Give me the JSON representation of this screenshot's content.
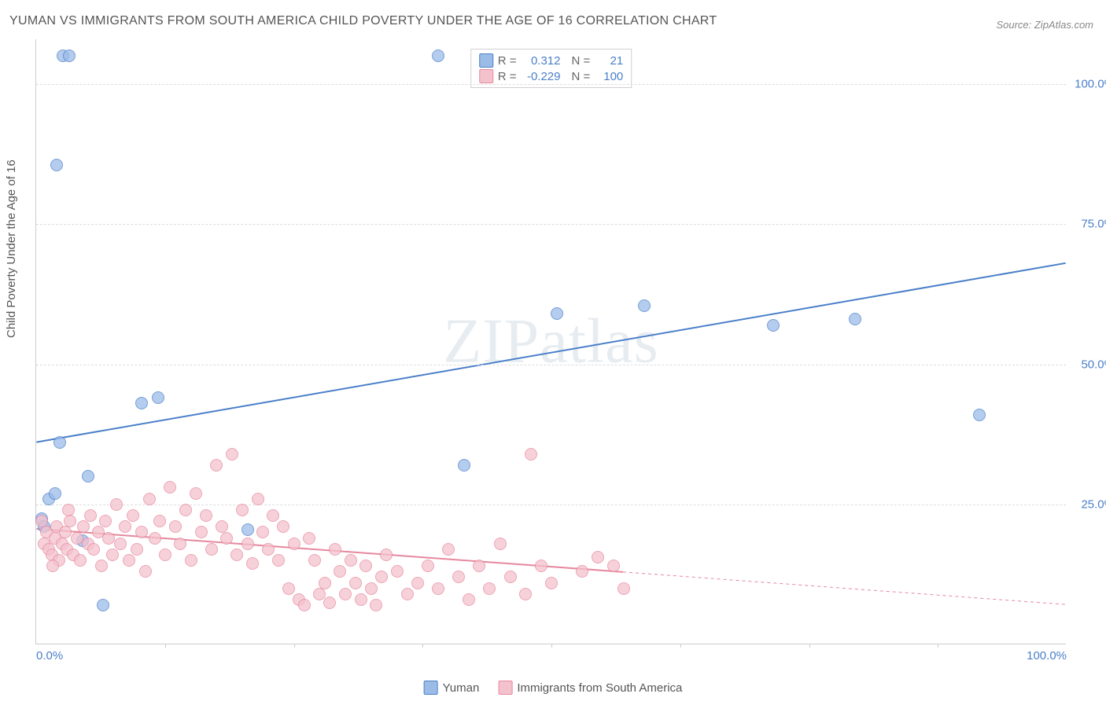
{
  "title": "YUMAN VS IMMIGRANTS FROM SOUTH AMERICA CHILD POVERTY UNDER THE AGE OF 16 CORRELATION CHART",
  "source": "Source: ZipAtlas.com",
  "ylabel": "Child Poverty Under the Age of 16",
  "watermark": "ZIPatlas",
  "chart": {
    "type": "scatter",
    "xlim": [
      0,
      100
    ],
    "ylim": [
      0,
      108
    ],
    "yticks": [
      25,
      50,
      75,
      100
    ],
    "ytick_labels": [
      "25.0%",
      "50.0%",
      "75.0%",
      "100.0%"
    ],
    "xticks": [
      0,
      100
    ],
    "xtick_labels": [
      "0.0%",
      "100.0%"
    ],
    "xtick_minor": [
      12.5,
      25,
      37.5,
      50,
      62.5,
      75,
      87.5
    ],
    "background_color": "#ffffff",
    "grid_color": "#dddddd",
    "axis_color": "#cccccc",
    "tick_label_color": "#4a7fc9",
    "marker_radius": 8,
    "marker_fill_opacity": 0.35,
    "marker_stroke_width": 1.2,
    "trend_line_width": 2
  },
  "series": [
    {
      "name": "Yuman",
      "color_fill": "#9cbce8",
      "color_stroke": "#4a7fc9",
      "R": "0.312",
      "N": "21",
      "trend": {
        "x1": 0,
        "y1": 36,
        "x2": 100,
        "y2": 68,
        "dashed_from": null
      },
      "points": [
        {
          "x": 0.5,
          "y": 22.5
        },
        {
          "x": 0.8,
          "y": 21
        },
        {
          "x": 1.2,
          "y": 26
        },
        {
          "x": 1.8,
          "y": 27
        },
        {
          "x": 2.3,
          "y": 36
        },
        {
          "x": 2.6,
          "y": 105
        },
        {
          "x": 3.2,
          "y": 105
        },
        {
          "x": 2.0,
          "y": 85.5
        },
        {
          "x": 4.5,
          "y": 18.5
        },
        {
          "x": 5.0,
          "y": 30
        },
        {
          "x": 6.5,
          "y": 7
        },
        {
          "x": 10.2,
          "y": 43
        },
        {
          "x": 11.8,
          "y": 44
        },
        {
          "x": 20.5,
          "y": 20.5
        },
        {
          "x": 39,
          "y": 105
        },
        {
          "x": 41.5,
          "y": 32
        },
        {
          "x": 50.5,
          "y": 59
        },
        {
          "x": 59,
          "y": 60.5
        },
        {
          "x": 71.5,
          "y": 57
        },
        {
          "x": 79.5,
          "y": 58
        },
        {
          "x": 91.5,
          "y": 41
        }
      ]
    },
    {
      "name": "Immigrants from South America",
      "color_fill": "#f4c2cd",
      "color_stroke": "#e6889e",
      "R": "-0.229",
      "N": "100",
      "trend": {
        "x1": 0,
        "y1": 20.5,
        "x2": 100,
        "y2": 7,
        "dashed_from": 57
      },
      "points": [
        {
          "x": 0.5,
          "y": 22
        },
        {
          "x": 0.8,
          "y": 18
        },
        {
          "x": 1.0,
          "y": 20
        },
        {
          "x": 1.2,
          "y": 17
        },
        {
          "x": 1.5,
          "y": 16
        },
        {
          "x": 1.8,
          "y": 19
        },
        {
          "x": 2.0,
          "y": 21
        },
        {
          "x": 2.2,
          "y": 15
        },
        {
          "x": 2.5,
          "y": 18
        },
        {
          "x": 2.8,
          "y": 20
        },
        {
          "x": 3.0,
          "y": 17
        },
        {
          "x": 3.3,
          "y": 22
        },
        {
          "x": 3.6,
          "y": 16
        },
        {
          "x": 4.0,
          "y": 19
        },
        {
          "x": 4.3,
          "y": 15
        },
        {
          "x": 4.6,
          "y": 21
        },
        {
          "x": 5.0,
          "y": 18
        },
        {
          "x": 5.3,
          "y": 23
        },
        {
          "x": 5.6,
          "y": 17
        },
        {
          "x": 6.0,
          "y": 20
        },
        {
          "x": 6.3,
          "y": 14
        },
        {
          "x": 6.7,
          "y": 22
        },
        {
          "x": 7.0,
          "y": 19
        },
        {
          "x": 7.4,
          "y": 16
        },
        {
          "x": 7.8,
          "y": 25
        },
        {
          "x": 8.2,
          "y": 18
        },
        {
          "x": 8.6,
          "y": 21
        },
        {
          "x": 9.0,
          "y": 15
        },
        {
          "x": 9.4,
          "y": 23
        },
        {
          "x": 9.8,
          "y": 17
        },
        {
          "x": 10.2,
          "y": 20
        },
        {
          "x": 10.6,
          "y": 13
        },
        {
          "x": 11.0,
          "y": 26
        },
        {
          "x": 11.5,
          "y": 19
        },
        {
          "x": 12.0,
          "y": 22
        },
        {
          "x": 12.5,
          "y": 16
        },
        {
          "x": 13.0,
          "y": 28
        },
        {
          "x": 13.5,
          "y": 21
        },
        {
          "x": 14.0,
          "y": 18
        },
        {
          "x": 14.5,
          "y": 24
        },
        {
          "x": 15.0,
          "y": 15
        },
        {
          "x": 15.5,
          "y": 27
        },
        {
          "x": 16.0,
          "y": 20
        },
        {
          "x": 16.5,
          "y": 23
        },
        {
          "x": 17.0,
          "y": 17
        },
        {
          "x": 17.5,
          "y": 32
        },
        {
          "x": 18.0,
          "y": 21
        },
        {
          "x": 18.5,
          "y": 19
        },
        {
          "x": 19.0,
          "y": 34
        },
        {
          "x": 19.5,
          "y": 16
        },
        {
          "x": 20.0,
          "y": 24
        },
        {
          "x": 20.5,
          "y": 18
        },
        {
          "x": 21.0,
          "y": 14.5
        },
        {
          "x": 21.5,
          "y": 26
        },
        {
          "x": 22.0,
          "y": 20
        },
        {
          "x": 22.5,
          "y": 17
        },
        {
          "x": 23.0,
          "y": 23
        },
        {
          "x": 23.5,
          "y": 15
        },
        {
          "x": 24.0,
          "y": 21
        },
        {
          "x": 24.5,
          "y": 10
        },
        {
          "x": 25.0,
          "y": 18
        },
        {
          "x": 25.5,
          "y": 8
        },
        {
          "x": 26.0,
          "y": 7
        },
        {
          "x": 26.5,
          "y": 19
        },
        {
          "x": 27.0,
          "y": 15
        },
        {
          "x": 27.5,
          "y": 9
        },
        {
          "x": 28.0,
          "y": 11
        },
        {
          "x": 28.5,
          "y": 7.5
        },
        {
          "x": 29.0,
          "y": 17
        },
        {
          "x": 29.5,
          "y": 13
        },
        {
          "x": 30.0,
          "y": 9
        },
        {
          "x": 30.5,
          "y": 15
        },
        {
          "x": 31.0,
          "y": 11
        },
        {
          "x": 31.5,
          "y": 8
        },
        {
          "x": 32.0,
          "y": 14
        },
        {
          "x": 32.5,
          "y": 10
        },
        {
          "x": 33.0,
          "y": 7
        },
        {
          "x": 33.5,
          "y": 12
        },
        {
          "x": 34.0,
          "y": 16
        },
        {
          "x": 35.0,
          "y": 13
        },
        {
          "x": 36.0,
          "y": 9
        },
        {
          "x": 37.0,
          "y": 11
        },
        {
          "x": 38.0,
          "y": 14
        },
        {
          "x": 39.0,
          "y": 10
        },
        {
          "x": 40.0,
          "y": 17
        },
        {
          "x": 41.0,
          "y": 12
        },
        {
          "x": 42.0,
          "y": 8
        },
        {
          "x": 43.0,
          "y": 14
        },
        {
          "x": 44.0,
          "y": 10
        },
        {
          "x": 45.0,
          "y": 18
        },
        {
          "x": 46.0,
          "y": 12
        },
        {
          "x": 47.5,
          "y": 9
        },
        {
          "x": 48.0,
          "y": 34
        },
        {
          "x": 49.0,
          "y": 14
        },
        {
          "x": 50.0,
          "y": 11
        },
        {
          "x": 53.0,
          "y": 13
        },
        {
          "x": 54.5,
          "y": 15.5
        },
        {
          "x": 56.0,
          "y": 14
        },
        {
          "x": 57.0,
          "y": 10
        },
        {
          "x": 3.1,
          "y": 24
        },
        {
          "x": 1.6,
          "y": 14
        }
      ]
    }
  ],
  "legend": {
    "items": [
      {
        "label": "Yuman",
        "fill": "#9cbce8",
        "stroke": "#4a7fc9"
      },
      {
        "label": "Immigrants from South America",
        "fill": "#f4c2cd",
        "stroke": "#e6889e"
      }
    ]
  },
  "stats_labels": {
    "R": "R =",
    "N": "N ="
  }
}
